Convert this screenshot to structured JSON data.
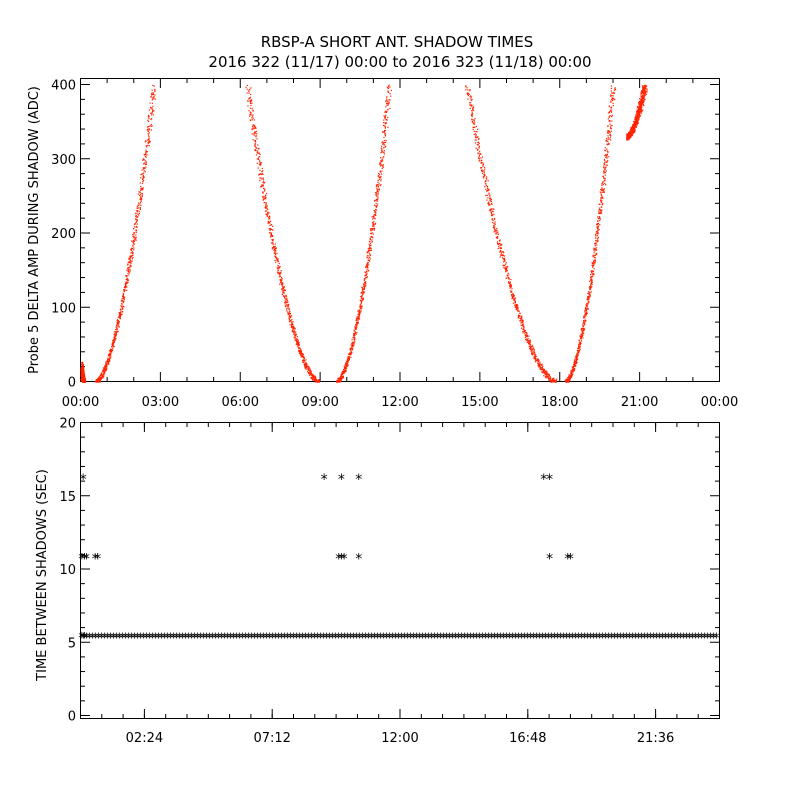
{
  "title": {
    "line1": "RBSP-A SHORT ANT. SHADOW TIMES",
    "line2": "2016 322 (11/17) 00:00 to 2016 323 (11/18) 00:00"
  },
  "colors": {
    "red": "#ff2200",
    "black": "#000000"
  },
  "chart_data": [
    {
      "type": "scatter",
      "name": "top",
      "ylabel": "Probe 5 DELTA AMP DURING SHADOW (ADC)",
      "xlim": [
        0,
        24
      ],
      "ylim": [
        0,
        400
      ],
      "yticks": [
        0,
        100,
        200,
        300,
        400
      ],
      "xtick_labels": [
        "00:00",
        "03:00",
        "06:00",
        "09:00",
        "12:00",
        "15:00",
        "18:00",
        "21:00",
        "00:00"
      ],
      "color": "#ff2200",
      "segments": [
        {
          "dir": "down",
          "t0": 0.0,
          "t1": 0.15,
          "v0": 20,
          "v1": 0
        },
        {
          "dir": "up",
          "t0": 0.55,
          "t1": 2.75,
          "v0": 0,
          "v1": 400
        },
        {
          "dir": "down",
          "t0": 6.25,
          "t1": 8.95,
          "v0": 400,
          "v1": 0
        },
        {
          "dir": "up",
          "t0": 9.6,
          "t1": 11.6,
          "v0": 0,
          "v1": 400
        },
        {
          "dir": "down",
          "t0": 14.5,
          "t1": 17.85,
          "v0": 400,
          "v1": 0
        },
        {
          "dir": "up",
          "t0": 18.2,
          "t1": 20.0,
          "v0": 0,
          "v1": 400
        },
        {
          "dir": "up",
          "t0": 20.5,
          "t1": 21.2,
          "v0": 330,
          "v1": 400
        }
      ]
    },
    {
      "type": "scatter",
      "name": "bottom",
      "ylabel": "TIME BETWEEN SHADOWS (SEC)",
      "xlim": [
        0,
        24
      ],
      "ylim": [
        0,
        20
      ],
      "yticks": [
        0,
        5,
        10,
        15,
        20
      ],
      "xticks_hours": [
        2.4,
        7.2,
        12.0,
        16.8,
        21.6
      ],
      "xtick_labels": [
        "02:24",
        "07:12",
        "12:00",
        "16:48",
        "21:36"
      ],
      "marker": "*",
      "baseline": 5.4,
      "points": [
        {
          "x": 0.1,
          "y": 16.2
        },
        {
          "x": 0.05,
          "y": 10.8
        },
        {
          "x": 0.15,
          "y": 10.8
        },
        {
          "x": 0.22,
          "y": 10.8
        },
        {
          "x": 0.55,
          "y": 10.8
        },
        {
          "x": 0.65,
          "y": 10.8
        },
        {
          "x": 0.05,
          "y": 5.4
        },
        {
          "x": 0.15,
          "y": 5.4
        },
        {
          "x": 9.15,
          "y": 16.2
        },
        {
          "x": 9.8,
          "y": 16.2
        },
        {
          "x": 10.45,
          "y": 16.2
        },
        {
          "x": 9.7,
          "y": 10.8
        },
        {
          "x": 9.8,
          "y": 10.8
        },
        {
          "x": 9.9,
          "y": 10.8
        },
        {
          "x": 10.45,
          "y": 10.8
        },
        {
          "x": 17.4,
          "y": 16.2
        },
        {
          "x": 17.62,
          "y": 16.2
        },
        {
          "x": 17.62,
          "y": 10.8
        },
        {
          "x": 18.3,
          "y": 10.8
        },
        {
          "x": 18.4,
          "y": 10.8
        }
      ]
    }
  ]
}
